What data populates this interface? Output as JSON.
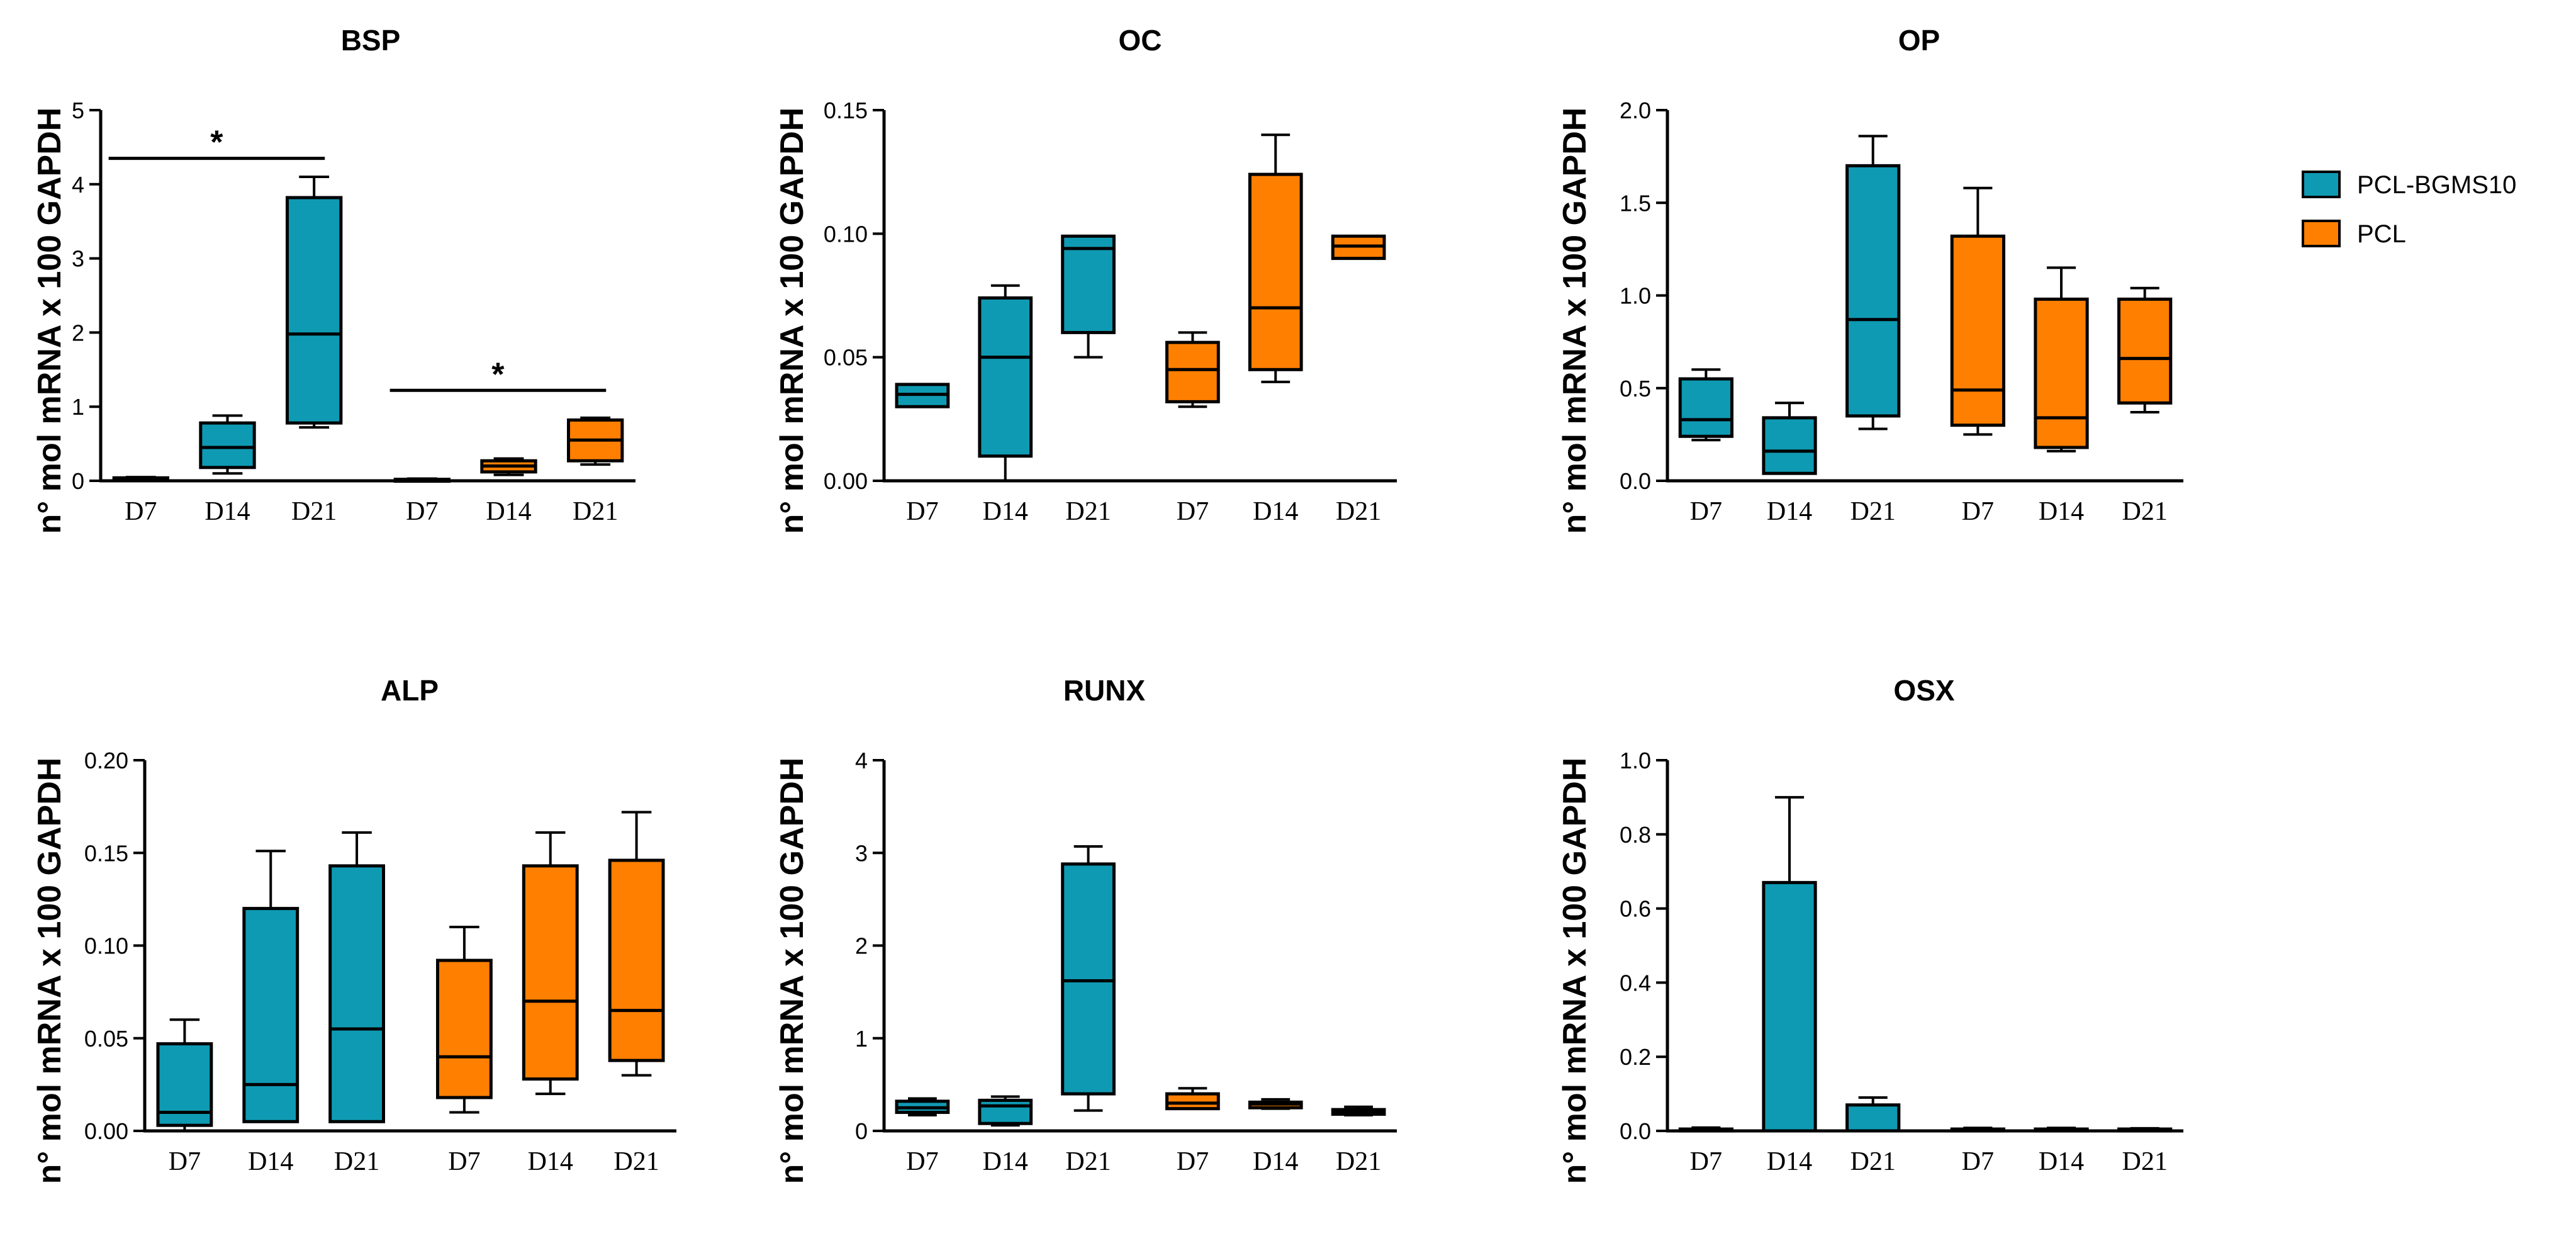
{
  "colors": {
    "PCL-BGMS10": "#0f9ab3",
    "PCL": "#ff7f00",
    "axis": "#000000"
  },
  "legend": [
    {
      "name": "PCL-BGMS10",
      "color": "#0f9ab3"
    },
    {
      "name": "PCL",
      "color": "#ff7f00"
    }
  ],
  "chart_data": [
    {
      "type": "box",
      "title": "BSP",
      "ylabel": "n° mol mRNA x 100 GAPDH",
      "ylim": [
        0,
        5
      ],
      "yticks": [
        "0",
        "1",
        "2",
        "3",
        "4",
        "5"
      ],
      "ytick_values": [
        0,
        1,
        2,
        3,
        4,
        5
      ],
      "categories": [
        "D7",
        "D14",
        "D21",
        "D7",
        "D14",
        "D21"
      ],
      "groups": [
        "PCL-BGMS10",
        "PCL-BGMS10",
        "PCL-BGMS10",
        "PCL",
        "PCL",
        "PCL"
      ],
      "boxes": [
        {
          "min": 0.0,
          "q1": 0.0,
          "median": 0.02,
          "q3": 0.04,
          "max": 0.05
        },
        {
          "min": 0.1,
          "q1": 0.18,
          "median": 0.45,
          "q3": 0.78,
          "max": 0.88
        },
        {
          "min": 0.72,
          "q1": 0.78,
          "median": 1.98,
          "q3": 3.82,
          "max": 4.1
        },
        {
          "min": 0.0,
          "q1": 0.0,
          "median": 0.01,
          "q3": 0.02,
          "max": 0.03
        },
        {
          "min": 0.08,
          "q1": 0.12,
          "median": 0.2,
          "q3": 0.27,
          "max": 0.3
        },
        {
          "min": 0.22,
          "q1": 0.27,
          "median": 0.55,
          "q3": 0.82,
          "max": 0.85
        }
      ],
      "significance": [
        {
          "from": 0,
          "to": 2,
          "y": 4.35,
          "label": "*"
        },
        {
          "from": 3,
          "to": 5,
          "y": 1.22,
          "label": "*"
        }
      ]
    },
    {
      "type": "box",
      "title": "OC",
      "ylabel": "n° mol mRNA x 100 GAPDH",
      "ylim": [
        0,
        0.15
      ],
      "yticks": [
        "0.00",
        "0.05",
        "0.10",
        "0.15"
      ],
      "ytick_values": [
        0,
        0.05,
        0.1,
        0.15
      ],
      "categories": [
        "D7",
        "D14",
        "D21",
        "D7",
        "D14",
        "D21"
      ],
      "groups": [
        "PCL-BGMS10",
        "PCL-BGMS10",
        "PCL-BGMS10",
        "PCL",
        "PCL",
        "PCL"
      ],
      "boxes": [
        {
          "min": 0.03,
          "q1": 0.03,
          "median": 0.035,
          "q3": 0.039,
          "max": 0.039
        },
        {
          "min": 0.0,
          "q1": 0.01,
          "median": 0.05,
          "q3": 0.074,
          "max": 0.079
        },
        {
          "min": 0.05,
          "q1": 0.06,
          "median": 0.094,
          "q3": 0.099,
          "max": 0.099
        },
        {
          "min": 0.03,
          "q1": 0.032,
          "median": 0.045,
          "q3": 0.056,
          "max": 0.06
        },
        {
          "min": 0.04,
          "q1": 0.045,
          "median": 0.07,
          "q3": 0.124,
          "max": 0.14
        },
        {
          "min": 0.09,
          "q1": 0.09,
          "median": 0.095,
          "q3": 0.099,
          "max": 0.099
        }
      ],
      "significance": []
    },
    {
      "type": "box",
      "title": "OP",
      "ylabel": "n° mol mRNA x 100 GAPDH",
      "ylim": [
        0,
        2.0
      ],
      "yticks": [
        "0.0",
        "0.5",
        "1.0",
        "1.5",
        "2.0"
      ],
      "ytick_values": [
        0,
        0.5,
        1.0,
        1.5,
        2.0
      ],
      "categories": [
        "D7",
        "D14",
        "D21",
        "D7",
        "D14",
        "D21"
      ],
      "groups": [
        "PCL-BGMS10",
        "PCL-BGMS10",
        "PCL-BGMS10",
        "PCL",
        "PCL",
        "PCL"
      ],
      "boxes": [
        {
          "min": 0.22,
          "q1": 0.24,
          "median": 0.33,
          "q3": 0.55,
          "max": 0.6
        },
        {
          "min": 0.04,
          "q1": 0.04,
          "median": 0.16,
          "q3": 0.34,
          "max": 0.42
        },
        {
          "min": 0.28,
          "q1": 0.35,
          "median": 0.87,
          "q3": 1.7,
          "max": 1.86
        },
        {
          "min": 0.25,
          "q1": 0.3,
          "median": 0.49,
          "q3": 1.32,
          "max": 1.58
        },
        {
          "min": 0.16,
          "q1": 0.18,
          "median": 0.34,
          "q3": 0.98,
          "max": 1.15
        },
        {
          "min": 0.37,
          "q1": 0.42,
          "median": 0.66,
          "q3": 0.98,
          "max": 1.04
        }
      ],
      "significance": []
    },
    {
      "type": "box",
      "title": "ALP",
      "ylabel": "n° mol mRNA x 100 GAPDH",
      "ylim": [
        0,
        0.2
      ],
      "yticks": [
        "0.00",
        "0.05",
        "0.10",
        "0.15",
        "0.20"
      ],
      "ytick_values": [
        0,
        0.05,
        0.1,
        0.15,
        0.2
      ],
      "categories": [
        "D7",
        "D14",
        "D21",
        "D7",
        "D14",
        "D21"
      ],
      "groups": [
        "PCL-BGMS10",
        "PCL-BGMS10",
        "PCL-BGMS10",
        "PCL",
        "PCL",
        "PCL"
      ],
      "boxes": [
        {
          "min": 0.0,
          "q1": 0.003,
          "median": 0.01,
          "q3": 0.047,
          "max": 0.06
        },
        {
          "min": 0.005,
          "q1": 0.005,
          "median": 0.025,
          "q3": 0.12,
          "max": 0.151
        },
        {
          "min": 0.005,
          "q1": 0.005,
          "median": 0.055,
          "q3": 0.143,
          "max": 0.161
        },
        {
          "min": 0.01,
          "q1": 0.018,
          "median": 0.04,
          "q3": 0.092,
          "max": 0.11
        },
        {
          "min": 0.02,
          "q1": 0.028,
          "median": 0.07,
          "q3": 0.143,
          "max": 0.161
        },
        {
          "min": 0.03,
          "q1": 0.038,
          "median": 0.065,
          "q3": 0.146,
          "max": 0.172
        }
      ],
      "significance": []
    },
    {
      "type": "box",
      "title": "RUNX",
      "ylabel": "n° mol mRNA x 100 GAPDH",
      "ylim": [
        0,
        4
      ],
      "yticks": [
        "0",
        "1",
        "2",
        "3",
        "4"
      ],
      "ytick_values": [
        0,
        1,
        2,
        3,
        4
      ],
      "categories": [
        "D7",
        "D14",
        "D21",
        "D7",
        "D14",
        "D21"
      ],
      "groups": [
        "PCL-BGMS10",
        "PCL-BGMS10",
        "PCL-BGMS10",
        "PCL",
        "PCL",
        "PCL"
      ],
      "boxes": [
        {
          "min": 0.17,
          "q1": 0.2,
          "median": 0.25,
          "q3": 0.32,
          "max": 0.35
        },
        {
          "min": 0.06,
          "q1": 0.08,
          "median": 0.27,
          "q3": 0.33,
          "max": 0.37
        },
        {
          "min": 0.22,
          "q1": 0.4,
          "median": 1.62,
          "q3": 2.88,
          "max": 3.07
        },
        {
          "min": 0.24,
          "q1": 0.24,
          "median": 0.3,
          "q3": 0.4,
          "max": 0.46
        },
        {
          "min": 0.24,
          "q1": 0.25,
          "median": 0.29,
          "q3": 0.31,
          "max": 0.34
        },
        {
          "min": 0.17,
          "q1": 0.18,
          "median": 0.21,
          "q3": 0.23,
          "max": 0.26
        }
      ],
      "significance": []
    },
    {
      "type": "bar",
      "title": "OSX",
      "ylabel": "n° mol mRNA x 100 GAPDH",
      "ylim": [
        0,
        1.0
      ],
      "yticks": [
        "0.0",
        "0.2",
        "0.4",
        "0.6",
        "0.8",
        "1.0"
      ],
      "ytick_values": [
        0,
        0.2,
        0.4,
        0.6,
        0.8,
        1.0
      ],
      "categories": [
        "D7",
        "D14",
        "D21",
        "D7",
        "D14",
        "D21"
      ],
      "groups": [
        "PCL-BGMS10",
        "PCL-BGMS10",
        "PCL-BGMS10",
        "PCL",
        "PCL",
        "PCL"
      ],
      "values": [
        0.005,
        0.67,
        0.07,
        0.005,
        0.005,
        0.005
      ],
      "errors": [
        0.004,
        0.23,
        0.02,
        0.003,
        0.003,
        0.002
      ],
      "significance": []
    }
  ]
}
